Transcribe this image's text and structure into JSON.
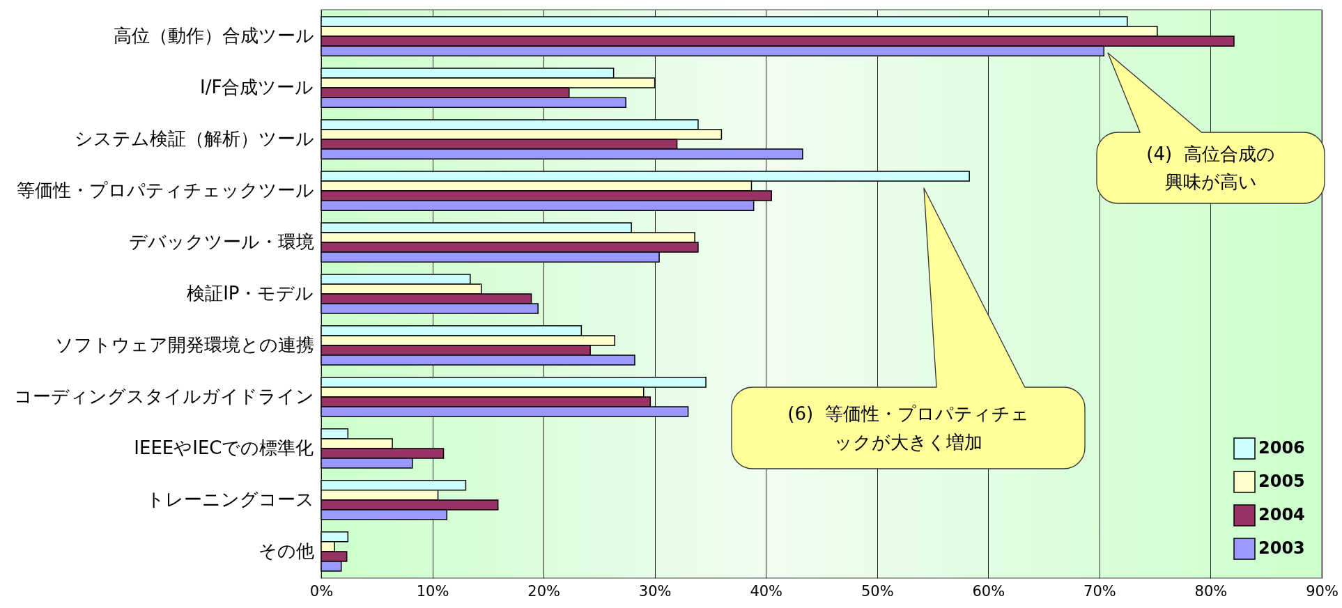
{
  "chart_data": {
    "type": "bar",
    "orientation": "horizontal",
    "categories": [
      "高位（動作）合成ツール",
      "I/F合成ツール",
      "システム検証（解析）ツール",
      "等価性・プロパティチェックツール",
      "デバックツール・環境",
      "検証IP・モデル",
      "ソフトウェア開発環境との連携",
      "コーディングスタイルガイドライン",
      "IEEEやIECでの標準化",
      "トレーニングコース",
      "その他"
    ],
    "series": [
      {
        "name": "2006",
        "color": "#ccffff",
        "values": [
          72.5,
          26.3,
          33.9,
          58.3,
          27.9,
          13.4,
          23.4,
          34.6,
          2.4,
          13.0,
          2.4
        ]
      },
      {
        "name": "2005",
        "color": "#ffffcc",
        "values": [
          75.2,
          30.0,
          36.0,
          38.7,
          33.6,
          14.4,
          26.4,
          29.0,
          6.4,
          10.5,
          1.2
        ]
      },
      {
        "name": "2004",
        "color": "#993366",
        "values": [
          82.1,
          22.3,
          32.0,
          40.5,
          33.9,
          18.9,
          24.2,
          29.6,
          11.0,
          15.9,
          2.3
        ]
      },
      {
        "name": "2003",
        "color": "#9999ff",
        "values": [
          70.4,
          27.4,
          43.3,
          38.9,
          30.4,
          19.5,
          28.2,
          33.0,
          8.2,
          11.3,
          1.8
        ]
      }
    ],
    "xlim": [
      0,
      90
    ],
    "xticks": [
      {
        "value": 0,
        "label": "0%"
      },
      {
        "value": 10,
        "label": "10%"
      },
      {
        "value": 20,
        "label": "20%"
      },
      {
        "value": 30,
        "label": "30%"
      },
      {
        "value": 40,
        "label": "40%"
      },
      {
        "value": 50,
        "label": "50%"
      },
      {
        "value": 60,
        "label": "60%"
      },
      {
        "value": 70,
        "label": "70%"
      },
      {
        "value": 80,
        "label": "80%"
      },
      {
        "value": 90,
        "label": "90%"
      }
    ],
    "grid": "x",
    "legend": "bottom right",
    "annotations": [
      "(4)  高位合成の興味が高い",
      "(6)  等価性・プロパティチェックが大きく増加"
    ]
  }
}
